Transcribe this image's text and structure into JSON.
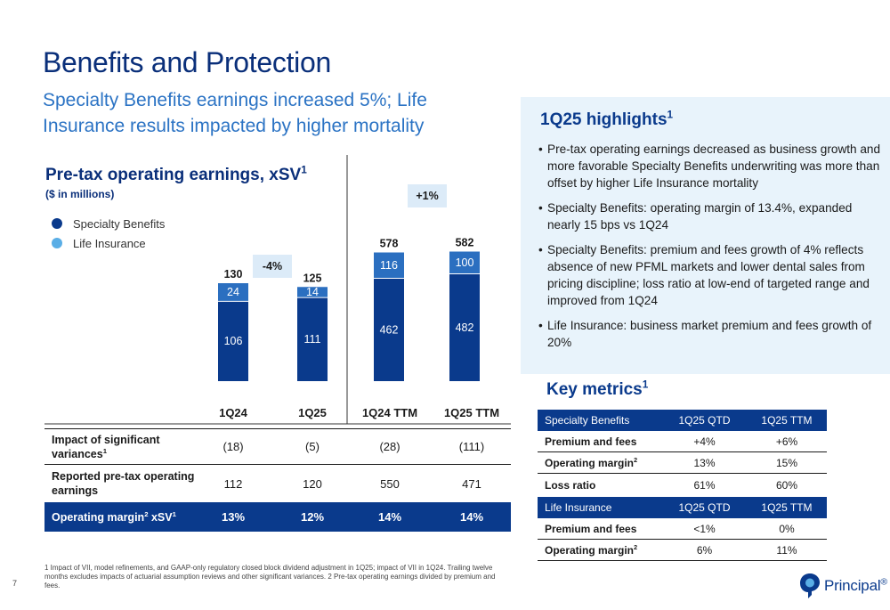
{
  "title": "Benefits and Protection",
  "subtitle": "Specialty Benefits earnings increased 5%; Life Insurance results impacted by higher mortality",
  "chart": {
    "title": "Pre-tax operating earnings, xSV",
    "title_sup": "1",
    "unit": "($ in millions)",
    "legend": [
      {
        "label": "Specialty Benefits",
        "color": "#0a3a8c"
      },
      {
        "label": "Life Insurance",
        "color": "#5aaee6"
      }
    ]
  },
  "chart_data": {
    "type": "bar",
    "stacked": true,
    "categories": [
      "1Q24",
      "1Q25",
      "1Q24 TTM",
      "1Q25 TTM"
    ],
    "series": [
      {
        "name": "Specialty Benefits",
        "values": [
          106,
          111,
          462,
          482
        ],
        "color": "#0a3a8c"
      },
      {
        "name": "Life Insurance",
        "values": [
          24,
          14,
          116,
          100
        ],
        "color": "#2b6fc0"
      }
    ],
    "totals": [
      "130",
      "125",
      "578",
      "582"
    ],
    "changes": [
      {
        "label": "-4%",
        "between": [
          "1Q24",
          "1Q25"
        ]
      },
      {
        "label": "+1%",
        "between": [
          "1Q24 TTM",
          "1Q25 TTM"
        ]
      }
    ],
    "scales": [
      "quarterly",
      "ttm"
    ]
  },
  "table": {
    "columns": [
      "1Q24",
      "1Q25",
      "1Q24 TTM",
      "1Q25 TTM"
    ],
    "rows": [
      {
        "label": "Impact of significant variances",
        "label_sup": "1",
        "values": [
          "(18)",
          "(5)",
          "(28)",
          "(111)"
        ]
      },
      {
        "label": "Reported pre-tax operating earnings",
        "label_sup": "",
        "values": [
          "112",
          "120",
          "550",
          "471"
        ]
      }
    ],
    "total_row": {
      "label_a": "Operating margin",
      "sup_a": "2",
      "label_b": " xSV",
      "sup_b": "1",
      "values": [
        "13%",
        "12%",
        "14%",
        "14%"
      ]
    }
  },
  "highlights": {
    "title": "1Q25 highlights",
    "title_sup": "1",
    "bullets": [
      "Pre-tax operating earnings decreased as business growth and more favorable Specialty Benefits underwriting was more than offset by higher Life Insurance mortality",
      "Specialty Benefits: operating margin of 13.4%, expanded nearly 15 bps vs 1Q24",
      "Specialty Benefits: premium and fees growth of 4% reflects absence of new PFML markets and lower dental sales from pricing discipline; loss ratio at low-end of targeted range and improved from 1Q24",
      "Life Insurance: business market premium and fees growth of 20%"
    ]
  },
  "key_metrics": {
    "title": "Key metrics",
    "title_sup": "1",
    "sections": [
      {
        "header": [
          "Specialty Benefits",
          "1Q25 QTD",
          "1Q25 TTM"
        ],
        "rows": [
          {
            "label": "Premium and fees",
            "sup": "",
            "qtd": "+4%",
            "ttm": "+6%"
          },
          {
            "label": "Operating margin",
            "sup": "2",
            "qtd": "13%",
            "ttm": "15%"
          },
          {
            "label": "Loss ratio",
            "sup": "",
            "qtd": "61%",
            "ttm": "60%"
          }
        ]
      },
      {
        "header": [
          "Life Insurance",
          "1Q25 QTD",
          "1Q25 TTM"
        ],
        "rows": [
          {
            "label": "Premium and fees",
            "sup": "",
            "qtd": "<1%",
            "ttm": "0%"
          },
          {
            "label": "Operating margin",
            "sup": "2",
            "qtd": "6%",
            "ttm": "11%"
          }
        ]
      }
    ]
  },
  "footnote": "1 Impact of VII, model refinements, and GAAP-only regulatory closed block dividend adjustment in 1Q25; impact of VII in 1Q24. Trailing twelve months excludes impacts of actuarial assumption reviews and other significant variances. 2 Pre-tax operating earnings divided by premium and fees.",
  "page_number": "7",
  "logo": {
    "text": "Principal",
    "mark": "®"
  }
}
